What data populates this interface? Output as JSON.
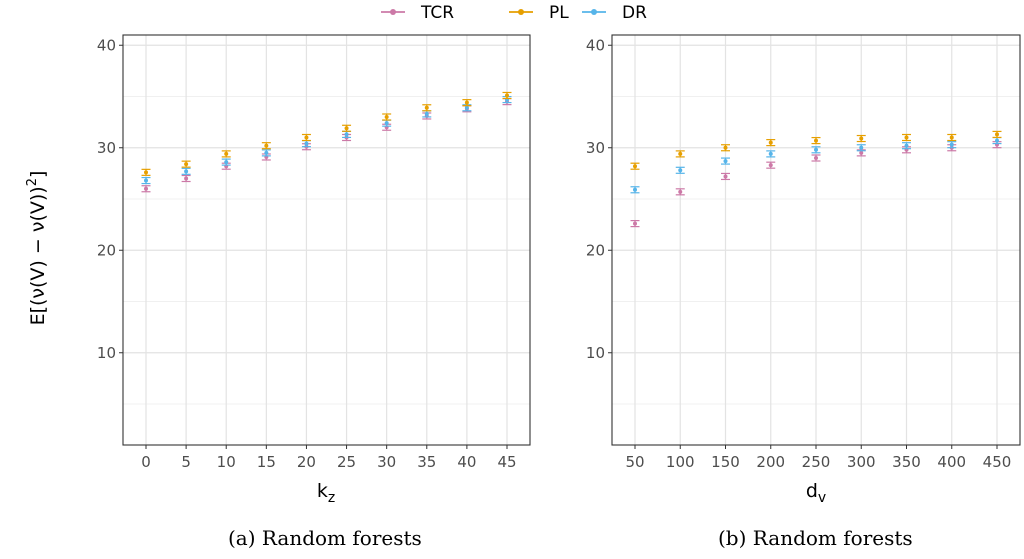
{
  "legend": [
    {
      "name": "TCR",
      "color": "#CC79A7"
    },
    {
      "name": "PL",
      "color": "#E69F00"
    },
    {
      "name": "DR",
      "color": "#56B4E9"
    }
  ],
  "ylabel_prefix": "E[(ν(V) − ",
  "ylabel_hat": "ν",
  "ylabel_suffix": "(V))",
  "ylabel_sup": "2",
  "ylabel_end": "]",
  "chart_data": [
    {
      "type": "scatter",
      "error_bars": true,
      "caption": "(a) Random forests",
      "xlabel_main": "k",
      "xlabel_sub": "z",
      "x": [
        0,
        5,
        10,
        15,
        20,
        25,
        30,
        35,
        40,
        45
      ],
      "xticks": [
        "0",
        "5",
        "10",
        "15",
        "20",
        "25",
        "30",
        "35",
        "40",
        "45"
      ],
      "yticks": [
        "10",
        "20",
        "30",
        "40"
      ],
      "ylim": [
        1,
        41
      ],
      "grid": true,
      "series": [
        {
          "name": "TCR",
          "values": [
            26.0,
            27.0,
            28.2,
            29.1,
            30.1,
            31.0,
            32.0,
            33.1,
            33.8,
            34.5
          ]
        },
        {
          "name": "PL",
          "values": [
            27.6,
            28.4,
            29.4,
            30.2,
            31.0,
            31.9,
            33.0,
            33.9,
            34.4,
            35.1
          ]
        },
        {
          "name": "DR",
          "values": [
            26.8,
            27.7,
            28.6,
            29.5,
            30.4,
            31.3,
            32.4,
            33.3,
            33.9,
            34.7
          ]
        }
      ]
    },
    {
      "type": "scatter",
      "error_bars": true,
      "caption": "(b) Random forests",
      "xlabel_main": "d",
      "xlabel_sub": "v",
      "x": [
        50,
        100,
        150,
        200,
        250,
        300,
        350,
        400,
        450
      ],
      "xticks": [
        "50",
        "100",
        "150",
        "200",
        "250",
        "300",
        "350",
        "400",
        "450"
      ],
      "yticks": [
        "10",
        "20",
        "30",
        "40"
      ],
      "ylim": [
        1,
        41
      ],
      "grid": true,
      "series": [
        {
          "name": "TCR",
          "values": [
            22.6,
            25.7,
            27.2,
            28.3,
            29.0,
            29.5,
            29.8,
            30.0,
            30.3
          ]
        },
        {
          "name": "PL",
          "values": [
            28.2,
            29.4,
            30.0,
            30.5,
            30.7,
            30.9,
            31.0,
            31.0,
            31.3
          ]
        },
        {
          "name": "DR",
          "values": [
            25.9,
            27.8,
            28.7,
            29.4,
            29.8,
            30.0,
            30.2,
            30.3,
            30.7
          ]
        }
      ]
    }
  ]
}
